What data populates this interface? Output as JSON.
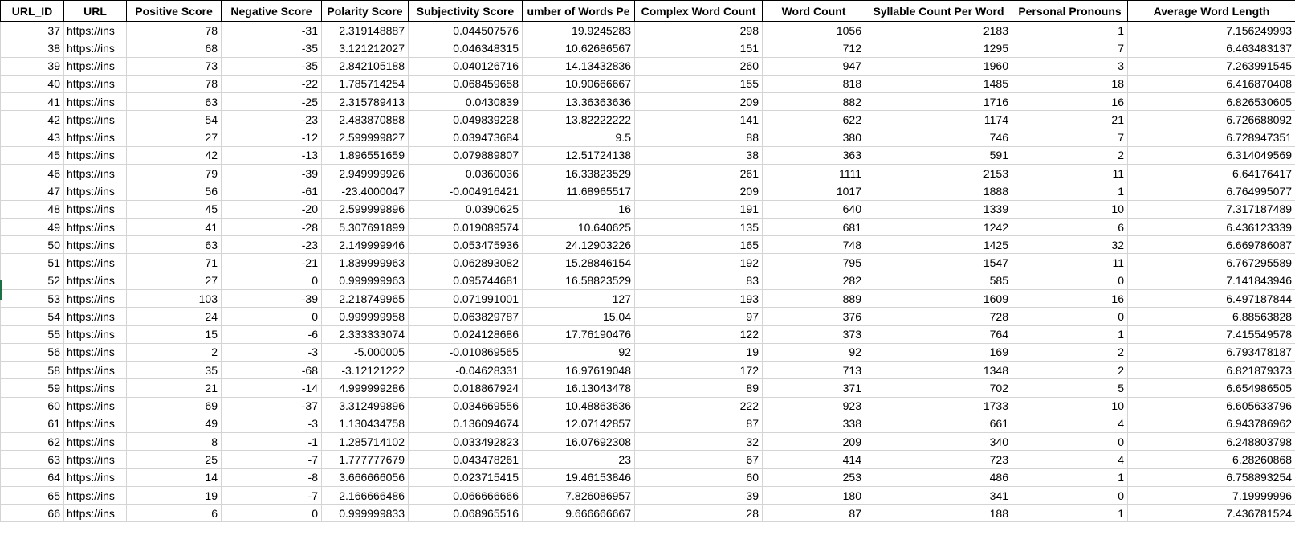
{
  "sheet": {
    "columns": [
      "URL_ID",
      "URL",
      "Positive Score",
      "Negative Score",
      "Polarity Score",
      "Subjectivity Score",
      "umber of Words Pe",
      "Complex Word Count",
      "Word Count",
      "Syllable Count Per Word",
      "Personal Pronouns",
      "Average Word Length"
    ],
    "rows": [
      [
        "37",
        "https://ins",
        "78",
        "-31",
        "2.319148887",
        "0.044507576",
        "19.9245283",
        "298",
        "1056",
        "2183",
        "1",
        "7.156249993"
      ],
      [
        "38",
        "https://ins",
        "68",
        "-35",
        "3.121212027",
        "0.046348315",
        "10.62686567",
        "151",
        "712",
        "1295",
        "7",
        "6.463483137"
      ],
      [
        "39",
        "https://ins",
        "73",
        "-35",
        "2.842105188",
        "0.040126716",
        "14.13432836",
        "260",
        "947",
        "1960",
        "3",
        "7.263991545"
      ],
      [
        "40",
        "https://ins",
        "78",
        "-22",
        "1.785714254",
        "0.068459658",
        "10.90666667",
        "155",
        "818",
        "1485",
        "18",
        "6.416870408"
      ],
      [
        "41",
        "https://ins",
        "63",
        "-25",
        "2.315789413",
        "0.0430839",
        "13.36363636",
        "209",
        "882",
        "1716",
        "16",
        "6.826530605"
      ],
      [
        "42",
        "https://ins",
        "54",
        "-23",
        "2.483870888",
        "0.049839228",
        "13.82222222",
        "141",
        "622",
        "1174",
        "21",
        "6.726688092"
      ],
      [
        "43",
        "https://ins",
        "27",
        "-12",
        "2.599999827",
        "0.039473684",
        "9.5",
        "88",
        "380",
        "746",
        "7",
        "6.728947351"
      ],
      [
        "45",
        "https://ins",
        "42",
        "-13",
        "1.896551659",
        "0.079889807",
        "12.51724138",
        "38",
        "363",
        "591",
        "2",
        "6.314049569"
      ],
      [
        "46",
        "https://ins",
        "79",
        "-39",
        "2.949999926",
        "0.0360036",
        "16.33823529",
        "261",
        "1111",
        "2153",
        "11",
        "6.64176417"
      ],
      [
        "47",
        "https://ins",
        "56",
        "-61",
        "-23.4000047",
        "-0.004916421",
        "11.68965517",
        "209",
        "1017",
        "1888",
        "1",
        "6.764995077"
      ],
      [
        "48",
        "https://ins",
        "45",
        "-20",
        "2.599999896",
        "0.0390625",
        "16",
        "191",
        "640",
        "1339",
        "10",
        "7.317187489"
      ],
      [
        "49",
        "https://ins",
        "41",
        "-28",
        "5.307691899",
        "0.019089574",
        "10.640625",
        "135",
        "681",
        "1242",
        "6",
        "6.436123339"
      ],
      [
        "50",
        "https://ins",
        "63",
        "-23",
        "2.149999946",
        "0.053475936",
        "24.12903226",
        "165",
        "748",
        "1425",
        "32",
        "6.669786087"
      ],
      [
        "51",
        "https://ins",
        "71",
        "-21",
        "1.839999963",
        "0.062893082",
        "15.28846154",
        "192",
        "795",
        "1547",
        "11",
        "6.767295589"
      ],
      [
        "52",
        "https://ins",
        "27",
        "0",
        "0.999999963",
        "0.095744681",
        "16.58823529",
        "83",
        "282",
        "585",
        "0",
        "7.141843946"
      ],
      [
        "53",
        "https://ins",
        "103",
        "-39",
        "2.218749965",
        "0.071991001",
        "127",
        "193",
        "889",
        "1609",
        "16",
        "6.497187844"
      ],
      [
        "54",
        "https://ins",
        "24",
        "0",
        "0.999999958",
        "0.063829787",
        "15.04",
        "97",
        "376",
        "728",
        "0",
        "6.88563828"
      ],
      [
        "55",
        "https://ins",
        "15",
        "-6",
        "2.333333074",
        "0.024128686",
        "17.76190476",
        "122",
        "373",
        "764",
        "1",
        "7.415549578"
      ],
      [
        "56",
        "https://ins",
        "2",
        "-3",
        "-5.000005",
        "-0.010869565",
        "92",
        "19",
        "92",
        "169",
        "2",
        "6.793478187"
      ],
      [
        "58",
        "https://ins",
        "35",
        "-68",
        "-3.12121222",
        "-0.04628331",
        "16.97619048",
        "172",
        "713",
        "1348",
        "2",
        "6.821879373"
      ],
      [
        "59",
        "https://ins",
        "21",
        "-14",
        "4.999999286",
        "0.018867924",
        "16.13043478",
        "89",
        "371",
        "702",
        "5",
        "6.654986505"
      ],
      [
        "60",
        "https://ins",
        "69",
        "-37",
        "3.312499896",
        "0.034669556",
        "10.48863636",
        "222",
        "923",
        "1733",
        "10",
        "6.605633796"
      ],
      [
        "61",
        "https://ins",
        "49",
        "-3",
        "1.130434758",
        "0.136094674",
        "12.07142857",
        "87",
        "338",
        "661",
        "4",
        "6.943786962"
      ],
      [
        "62",
        "https://ins",
        "8",
        "-1",
        "1.285714102",
        "0.033492823",
        "16.07692308",
        "32",
        "209",
        "340",
        "0",
        "6.248803798"
      ],
      [
        "63",
        "https://ins",
        "25",
        "-7",
        "1.777777679",
        "0.043478261",
        "23",
        "67",
        "414",
        "723",
        "4",
        "6.28260868"
      ],
      [
        "64",
        "https://ins",
        "14",
        "-8",
        "3.666666056",
        "0.023715415",
        "19.46153846",
        "60",
        "253",
        "486",
        "1",
        "6.758893254"
      ],
      [
        "65",
        "https://ins",
        "19",
        "-7",
        "2.166666486",
        "0.066666666",
        "7.826086957",
        "39",
        "180",
        "341",
        "0",
        "7.19999996"
      ],
      [
        "66",
        "https://ins",
        "6",
        "0",
        "0.999999833",
        "0.068965516",
        "9.666666667",
        "28",
        "87",
        "188",
        "1",
        "7.436781524"
      ]
    ]
  }
}
